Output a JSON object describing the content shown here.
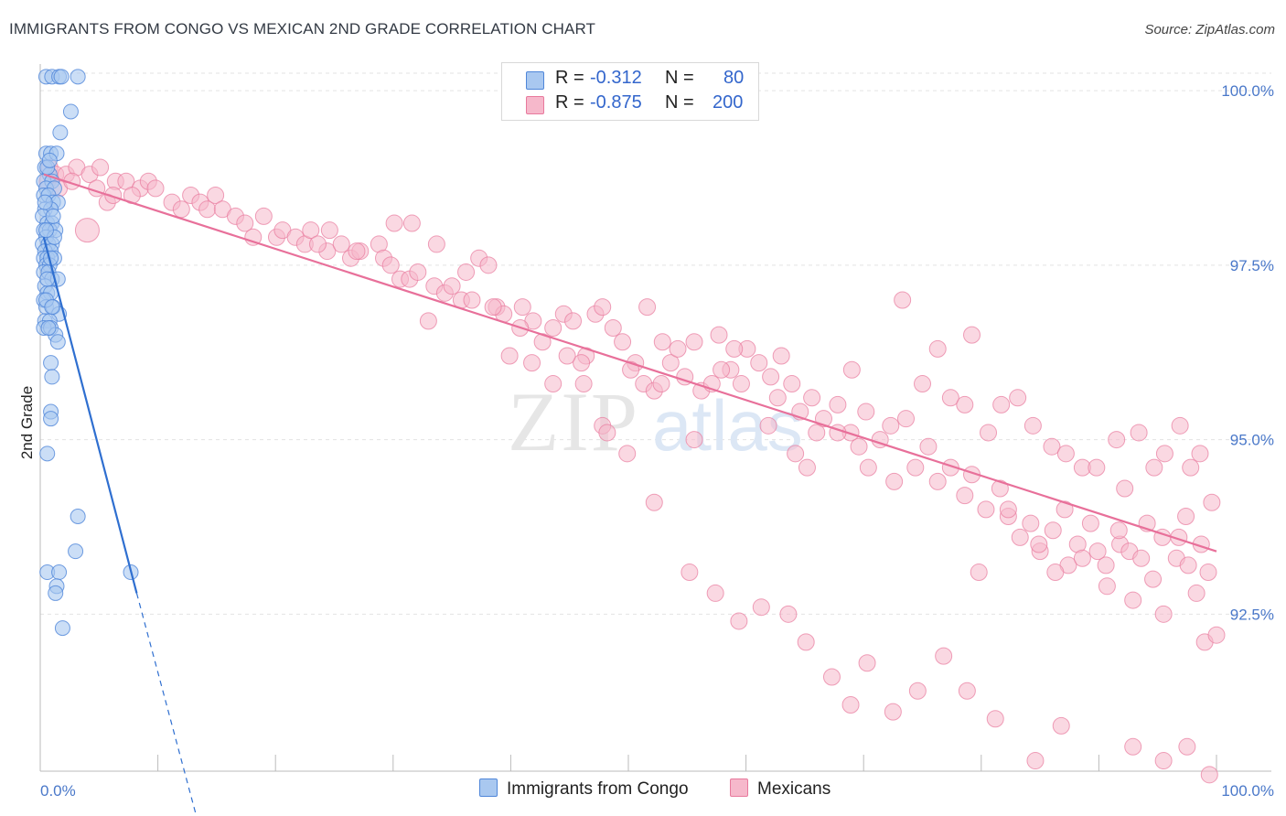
{
  "title": "IMMIGRANTS FROM CONGO VS MEXICAN 2ND GRADE CORRELATION CHART",
  "source": "Source: ZipAtlas.com",
  "watermark": {
    "part1": "ZIP",
    "part2": "atlas"
  },
  "stats": {
    "r_label": "R =",
    "n_label": "N =",
    "congo": {
      "r": "-0.312",
      "n": "80"
    },
    "mexicans": {
      "r": "-0.875",
      "n": "200"
    }
  },
  "legend": {
    "congo": "Immigrants from Congo",
    "mexicans": "Mexicans"
  },
  "colors": {
    "congo_fill": "#a9c8f0",
    "congo_stroke": "#4f86d9",
    "congo_line": "#2f6fd0",
    "mex_fill": "#f6b8cb",
    "mex_stroke": "#e8799d",
    "mex_line": "#e8709a",
    "tick_text": "#4a78c9",
    "grid": "#e3e3e3"
  },
  "chart_data": {
    "type": "scatter",
    "title": "IMMIGRANTS FROM CONGO VS MEXICAN 2ND GRADE CORRELATION CHART",
    "xlabel": "",
    "ylabel": "2nd Grade",
    "x_axis": {
      "min": 0,
      "max": 100,
      "tick_labels": [
        "0.0%",
        "100.0%"
      ]
    },
    "y_axis": {
      "min": 90.25,
      "max": 100.25,
      "ticks": [
        92.5,
        95.0,
        97.5,
        100.0
      ],
      "tick_labels": [
        "92.5%",
        "95.0%",
        "97.5%",
        "100.0%"
      ]
    },
    "grid": true,
    "series": [
      {
        "name": "Immigrants from Congo",
        "r": -0.312,
        "n": 80,
        "trend": {
          "x0": 0.3,
          "y0": 97.9,
          "x1": 8.2,
          "y1": 92.8,
          "dash_to_x": 13.6,
          "dash_to_y": 89.4
        },
        "points": [
          [
            0.5,
            100.2
          ],
          [
            1.0,
            100.2
          ],
          [
            1.6,
            100.2
          ],
          [
            1.8,
            100.2
          ],
          [
            3.2,
            100.2
          ],
          [
            2.6,
            99.7
          ],
          [
            1.7,
            99.4
          ],
          [
            0.5,
            99.1
          ],
          [
            0.9,
            99.1
          ],
          [
            1.4,
            99.1
          ],
          [
            0.4,
            98.9
          ],
          [
            0.8,
            98.8
          ],
          [
            0.3,
            98.7
          ],
          [
            1.0,
            98.7
          ],
          [
            0.5,
            98.6
          ],
          [
            1.2,
            98.6
          ],
          [
            0.3,
            98.5
          ],
          [
            0.7,
            98.5
          ],
          [
            1.1,
            98.4
          ],
          [
            1.5,
            98.4
          ],
          [
            0.4,
            98.3
          ],
          [
            0.9,
            98.3
          ],
          [
            0.2,
            98.2
          ],
          [
            0.6,
            98.1
          ],
          [
            1.0,
            98.1
          ],
          [
            0.3,
            98.0
          ],
          [
            0.8,
            98.0
          ],
          [
            1.3,
            98.0
          ],
          [
            0.5,
            97.9
          ],
          [
            0.2,
            97.8
          ],
          [
            0.7,
            97.8
          ],
          [
            1.0,
            97.8
          ],
          [
            0.4,
            97.7
          ],
          [
            0.9,
            97.7
          ],
          [
            0.3,
            97.6
          ],
          [
            0.6,
            97.6
          ],
          [
            1.2,
            97.6
          ],
          [
            0.5,
            97.5
          ],
          [
            0.8,
            97.5
          ],
          [
            0.3,
            97.4
          ],
          [
            0.7,
            97.4
          ],
          [
            1.0,
            97.3
          ],
          [
            1.5,
            97.3
          ],
          [
            0.4,
            97.2
          ],
          [
            0.6,
            97.1
          ],
          [
            0.9,
            97.1
          ],
          [
            0.3,
            97.0
          ],
          [
            0.5,
            96.9
          ],
          [
            1.1,
            96.9
          ],
          [
            1.6,
            96.8
          ],
          [
            0.4,
            96.7
          ],
          [
            0.8,
            96.7
          ],
          [
            0.3,
            96.6
          ],
          [
            0.9,
            96.6
          ],
          [
            1.3,
            96.5
          ],
          [
            1.5,
            96.4
          ],
          [
            0.9,
            96.1
          ],
          [
            1.0,
            95.9
          ],
          [
            0.9,
            95.4
          ],
          [
            0.9,
            95.3
          ],
          [
            0.6,
            94.8
          ],
          [
            3.2,
            93.9
          ],
          [
            3.0,
            93.4
          ],
          [
            0.6,
            93.1
          ],
          [
            1.6,
            93.1
          ],
          [
            7.7,
            93.1
          ],
          [
            1.4,
            92.9
          ],
          [
            1.3,
            92.8
          ],
          [
            1.9,
            92.3
          ],
          [
            0.6,
            98.9
          ],
          [
            1.1,
            98.2
          ],
          [
            0.5,
            97.0
          ],
          [
            0.7,
            96.6
          ],
          [
            0.4,
            98.4
          ],
          [
            0.8,
            99.0
          ],
          [
            1.2,
            97.9
          ],
          [
            0.6,
            97.3
          ],
          [
            1.0,
            96.9
          ],
          [
            0.5,
            98.0
          ],
          [
            0.9,
            97.6
          ]
        ]
      },
      {
        "name": "Mexicans",
        "r": -0.875,
        "n": 200,
        "trend": {
          "x0": 0.3,
          "y0": 98.8,
          "x1": 100.0,
          "y1": 93.4
        },
        "points": [
          [
            0.8,
            98.9
          ],
          [
            1.3,
            98.8
          ],
          [
            2.2,
            98.8
          ],
          [
            3.1,
            98.9
          ],
          [
            4.2,
            98.8
          ],
          [
            5.1,
            98.9
          ],
          [
            6.4,
            98.7
          ],
          [
            0.6,
            98.7
          ],
          [
            1.6,
            98.6
          ],
          [
            2.7,
            98.7
          ],
          [
            4.8,
            98.6
          ],
          [
            5.7,
            98.4
          ],
          [
            7.3,
            98.7
          ],
          [
            8.5,
            98.6
          ],
          [
            9.2,
            98.7
          ],
          [
            4.0,
            98.0
          ],
          [
            6.2,
            98.5
          ],
          [
            7.8,
            98.5
          ],
          [
            9.8,
            98.6
          ],
          [
            11.2,
            98.4
          ],
          [
            12.0,
            98.3
          ],
          [
            12.8,
            98.5
          ],
          [
            13.6,
            98.4
          ],
          [
            14.2,
            98.3
          ],
          [
            14.9,
            98.5
          ],
          [
            15.5,
            98.3
          ],
          [
            16.6,
            98.2
          ],
          [
            17.4,
            98.1
          ],
          [
            18.1,
            97.9
          ],
          [
            19.0,
            98.2
          ],
          [
            20.1,
            97.9
          ],
          [
            20.6,
            98.0
          ],
          [
            21.7,
            97.9
          ],
          [
            22.5,
            97.8
          ],
          [
            23.0,
            98.0
          ],
          [
            24.4,
            97.7
          ],
          [
            25.6,
            97.8
          ],
          [
            26.4,
            97.6
          ],
          [
            27.2,
            97.7
          ],
          [
            28.8,
            97.8
          ],
          [
            29.2,
            97.6
          ],
          [
            30.6,
            97.3
          ],
          [
            31.4,
            97.3
          ],
          [
            32.1,
            97.4
          ],
          [
            33.5,
            97.2
          ],
          [
            34.4,
            97.1
          ],
          [
            35.0,
            97.2
          ],
          [
            36.2,
            97.4
          ],
          [
            37.3,
            97.6
          ],
          [
            38.1,
            97.5
          ],
          [
            38.8,
            96.9
          ],
          [
            39.4,
            96.8
          ],
          [
            39.9,
            96.2
          ],
          [
            41.0,
            96.9
          ],
          [
            41.9,
            96.7
          ],
          [
            42.7,
            96.4
          ],
          [
            43.6,
            96.6
          ],
          [
            44.5,
            96.8
          ],
          [
            45.3,
            96.7
          ],
          [
            46.4,
            96.2
          ],
          [
            47.2,
            96.8
          ],
          [
            47.8,
            96.9
          ],
          [
            48.7,
            96.6
          ],
          [
            49.5,
            96.4
          ],
          [
            50.6,
            96.1
          ],
          [
            51.3,
            95.8
          ],
          [
            52.2,
            95.7
          ],
          [
            52.9,
            96.4
          ],
          [
            53.6,
            96.1
          ],
          [
            54.8,
            95.9
          ],
          [
            55.6,
            96.4
          ],
          [
            56.2,
            95.7
          ],
          [
            57.1,
            95.8
          ],
          [
            57.7,
            96.5
          ],
          [
            58.7,
            96.0
          ],
          [
            59.6,
            95.8
          ],
          [
            60.1,
            96.3
          ],
          [
            61.1,
            96.1
          ],
          [
            62.1,
            95.9
          ],
          [
            62.7,
            95.6
          ],
          [
            63.9,
            95.8
          ],
          [
            64.6,
            95.4
          ],
          [
            65.6,
            95.6
          ],
          [
            66.6,
            95.3
          ],
          [
            67.8,
            95.5
          ],
          [
            68.9,
            95.1
          ],
          [
            69.6,
            94.9
          ],
          [
            70.2,
            95.4
          ],
          [
            71.4,
            95.0
          ],
          [
            72.3,
            95.2
          ],
          [
            73.6,
            95.3
          ],
          [
            74.4,
            94.6
          ],
          [
            75.5,
            94.9
          ],
          [
            76.3,
            94.4
          ],
          [
            77.4,
            94.6
          ],
          [
            78.6,
            94.2
          ],
          [
            79.2,
            94.5
          ],
          [
            80.4,
            94.0
          ],
          [
            81.6,
            94.3
          ],
          [
            82.3,
            93.9
          ],
          [
            83.3,
            93.6
          ],
          [
            84.2,
            93.8
          ],
          [
            85.0,
            93.4
          ],
          [
            86.1,
            93.7
          ],
          [
            87.4,
            93.2
          ],
          [
            88.2,
            93.5
          ],
          [
            89.3,
            93.8
          ],
          [
            90.6,
            93.2
          ],
          [
            91.8,
            93.5
          ],
          [
            92.6,
            93.4
          ],
          [
            93.6,
            93.3
          ],
          [
            94.6,
            93.0
          ],
          [
            95.4,
            93.6
          ],
          [
            96.6,
            93.3
          ],
          [
            97.6,
            93.2
          ],
          [
            98.7,
            93.5
          ],
          [
            99.3,
            93.1
          ],
          [
            23.6,
            97.8
          ],
          [
            24.6,
            98.0
          ],
          [
            26.9,
            97.7
          ],
          [
            29.8,
            97.5
          ],
          [
            33.0,
            96.7
          ],
          [
            35.8,
            97.0
          ],
          [
            41.8,
            96.1
          ],
          [
            43.6,
            95.8
          ],
          [
            46.0,
            96.1
          ],
          [
            47.8,
            95.2
          ],
          [
            50.2,
            96.0
          ],
          [
            51.6,
            96.9
          ],
          [
            52.8,
            95.8
          ],
          [
            54.2,
            96.3
          ],
          [
            55.6,
            95.0
          ],
          [
            57.9,
            96.0
          ],
          [
            59.0,
            96.3
          ],
          [
            61.9,
            95.2
          ],
          [
            63.0,
            96.2
          ],
          [
            64.2,
            94.8
          ],
          [
            65.2,
            94.6
          ],
          [
            66.0,
            95.1
          ],
          [
            67.8,
            95.1
          ],
          [
            69.0,
            96.0
          ],
          [
            70.4,
            94.6
          ],
          [
            72.6,
            94.4
          ],
          [
            73.3,
            97.0
          ],
          [
            75.0,
            95.8
          ],
          [
            76.3,
            96.3
          ],
          [
            77.4,
            95.6
          ],
          [
            78.6,
            95.5
          ],
          [
            79.2,
            96.5
          ],
          [
            80.6,
            95.1
          ],
          [
            81.7,
            95.5
          ],
          [
            83.1,
            95.6
          ],
          [
            84.4,
            95.2
          ],
          [
            86.0,
            94.9
          ],
          [
            87.2,
            94.8
          ],
          [
            88.6,
            94.6
          ],
          [
            89.8,
            94.6
          ],
          [
            91.5,
            95.0
          ],
          [
            92.2,
            94.3
          ],
          [
            93.4,
            95.1
          ],
          [
            94.7,
            94.6
          ],
          [
            95.6,
            94.8
          ],
          [
            96.9,
            95.2
          ],
          [
            97.8,
            94.6
          ],
          [
            98.6,
            94.8
          ],
          [
            99.6,
            94.1
          ],
          [
            79.8,
            93.1
          ],
          [
            82.3,
            94.0
          ],
          [
            84.9,
            93.5
          ],
          [
            86.3,
            93.1
          ],
          [
            87.1,
            94.0
          ],
          [
            88.6,
            93.3
          ],
          [
            89.9,
            93.4
          ],
          [
            90.7,
            92.9
          ],
          [
            91.7,
            93.7
          ],
          [
            92.9,
            92.7
          ],
          [
            94.1,
            93.8
          ],
          [
            95.5,
            92.5
          ],
          [
            96.8,
            93.6
          ],
          [
            97.4,
            93.9
          ],
          [
            98.3,
            92.8
          ],
          [
            99.0,
            92.1
          ],
          [
            100.0,
            92.2
          ],
          [
            30.1,
            98.1
          ],
          [
            31.6,
            98.1
          ],
          [
            33.7,
            97.8
          ],
          [
            36.7,
            97.0
          ],
          [
            38.5,
            96.9
          ],
          [
            40.8,
            96.6
          ],
          [
            44.8,
            96.2
          ],
          [
            46.2,
            95.8
          ],
          [
            48.2,
            95.1
          ],
          [
            49.9,
            94.8
          ],
          [
            52.2,
            94.1
          ],
          [
            55.2,
            93.1
          ],
          [
            57.4,
            92.8
          ],
          [
            59.4,
            92.4
          ],
          [
            61.3,
            92.6
          ],
          [
            63.6,
            92.5
          ],
          [
            65.1,
            92.1
          ],
          [
            67.3,
            91.6
          ],
          [
            68.9,
            91.2
          ],
          [
            70.3,
            91.8
          ],
          [
            72.5,
            91.1
          ],
          [
            74.6,
            91.4
          ],
          [
            76.8,
            91.9
          ],
          [
            78.8,
            91.4
          ],
          [
            81.2,
            91.0
          ],
          [
            84.6,
            90.4
          ],
          [
            86.8,
            90.9
          ],
          [
            92.9,
            90.6
          ],
          [
            95.5,
            90.4
          ],
          [
            97.5,
            90.6
          ],
          [
            99.4,
            90.2
          ]
        ]
      }
    ]
  }
}
